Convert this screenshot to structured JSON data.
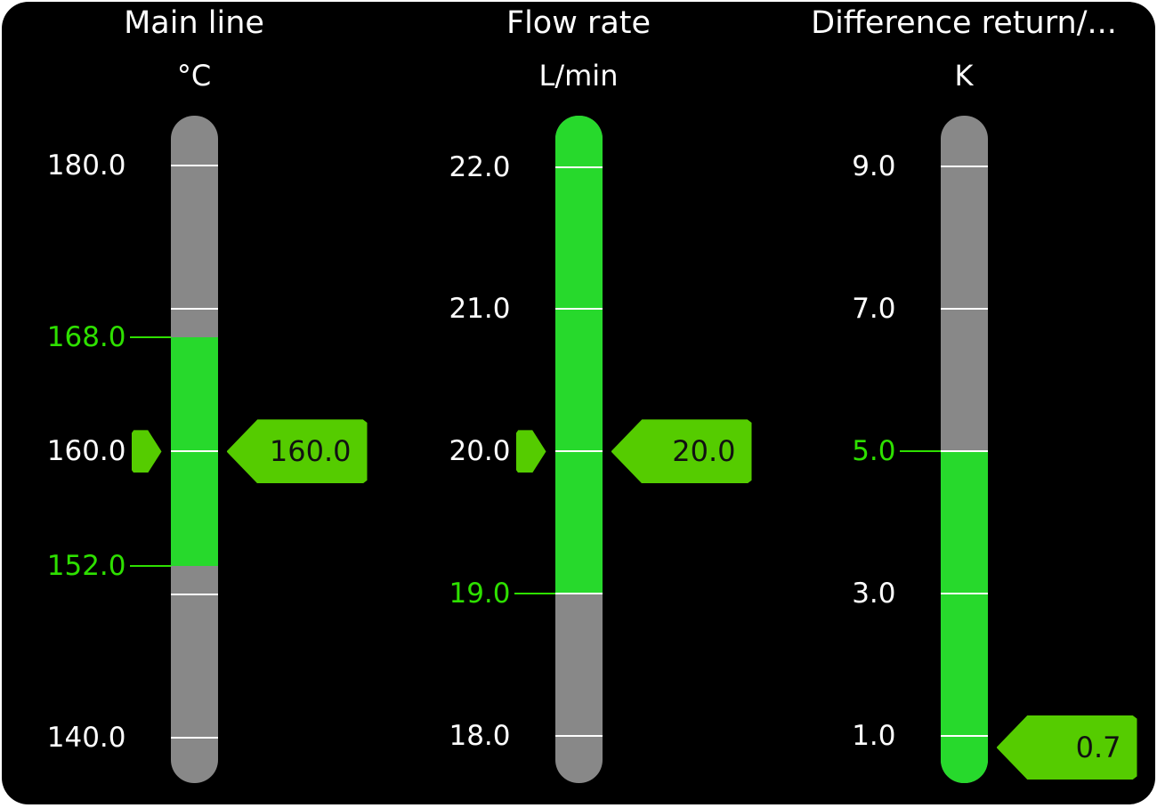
{
  "colors": {
    "background": "#000000",
    "bar": "#888888",
    "range": "#27d92c",
    "limit_label": "#2ee000",
    "indicator": "#55cc00",
    "tick": "#ffffff"
  },
  "gauges": [
    {
      "title": "Main line",
      "unit": "°C",
      "scale_min": 136.8,
      "scale_max": 183.5,
      "ticks": [
        {
          "value": 180,
          "label": "180.0"
        },
        {
          "value": 170,
          "label": ""
        },
        {
          "value": 160,
          "label": "160.0"
        },
        {
          "value": 150,
          "label": ""
        },
        {
          "value": 140,
          "label": "140.0"
        }
      ],
      "range": {
        "low": 152,
        "high": 168,
        "low_label": "152.0",
        "high_label": "168.0"
      },
      "value": 160,
      "value_label": "160.0",
      "setpoint_pointer": true
    },
    {
      "title": "Flow rate",
      "unit": "L/min",
      "scale_min": 17.67,
      "scale_max": 22.36,
      "ticks": [
        {
          "value": 22,
          "label": "22.0"
        },
        {
          "value": 21,
          "label": "21.0"
        },
        {
          "value": 20,
          "label": "20.0"
        },
        {
          "value": 19,
          "label": ""
        },
        {
          "value": 18,
          "label": "18.0"
        }
      ],
      "range": {
        "low": 19,
        "high": 22.36,
        "low_label": "19.0",
        "high_label": ""
      },
      "value": 20,
      "value_label": "20.0",
      "setpoint_pointer": true
    },
    {
      "title": "Difference return/...",
      "unit": "K",
      "scale_min": 0.34,
      "scale_max": 9.71,
      "ticks": [
        {
          "value": 9,
          "label": "9.0"
        },
        {
          "value": 7,
          "label": "7.0"
        },
        {
          "value": 5,
          "label": ""
        },
        {
          "value": 3,
          "label": "3.0"
        },
        {
          "value": 1,
          "label": "1.0"
        }
      ],
      "range": {
        "low": 0.34,
        "high": 5,
        "low_label": "",
        "high_label": "5.0"
      },
      "value": 0.7,
      "value_label": "0.7",
      "setpoint_pointer": false
    }
  ]
}
